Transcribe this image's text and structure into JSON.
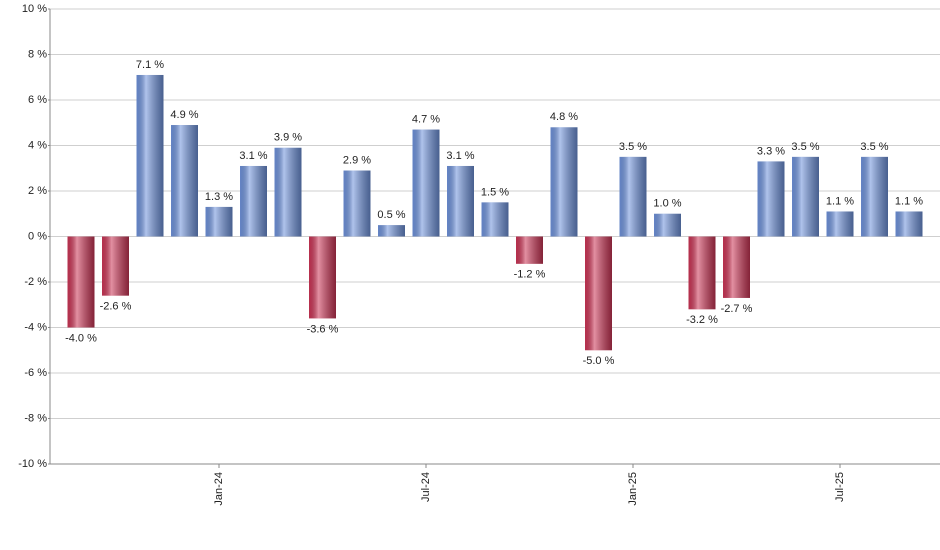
{
  "chart_data": {
    "type": "bar",
    "categories": [
      null,
      null,
      null,
      null,
      "Jan-24",
      null,
      null,
      null,
      null,
      null,
      "Jul-24",
      null,
      null,
      null,
      null,
      null,
      "Jan-25",
      null,
      null,
      null,
      null,
      null,
      "Jul-25",
      null,
      null
    ],
    "values": [
      -4.0,
      -2.6,
      7.1,
      4.9,
      1.3,
      3.1,
      3.9,
      -3.6,
      2.9,
      0.5,
      4.7,
      3.1,
      1.5,
      -1.2,
      4.8,
      -5.0,
      3.5,
      1.0,
      -3.2,
      -2.7,
      3.3,
      3.5,
      1.1,
      3.5,
      1.1
    ],
    "value_labels": [
      "-4.0 %",
      "-2.6 %",
      "7.1 %",
      "4.9 %",
      "1.3 %",
      "3.1 %",
      "3.9 %",
      "-3.6 %",
      "2.9 %",
      "0.5 %",
      "4.7 %",
      "3.1 %",
      "1.5 %",
      "-1.2 %",
      "4.8 %",
      "-5.0 %",
      "3.5 %",
      "1.0 %",
      "-3.2 %",
      "-2.7 %",
      "3.3 %",
      "3.5 %",
      "1.1 %",
      "3.5 %",
      "1.1 %"
    ],
    "positive_color": "#6f93dc",
    "negative_color": "#cc3556",
    "ylim": [
      -10,
      10
    ],
    "yticks": [
      {
        "value": -10,
        "label": "-10 %"
      },
      {
        "value": -8,
        "label": "-8 %"
      },
      {
        "value": -6,
        "label": "-6 %"
      },
      {
        "value": -4,
        "label": "-4 %"
      },
      {
        "value": -2,
        "label": "-2 %"
      },
      {
        "value": 0,
        "label": "0 %"
      },
      {
        "value": 2,
        "label": "2 %"
      },
      {
        "value": 4,
        "label": "4 %"
      },
      {
        "value": 6,
        "label": "6 %"
      },
      {
        "value": 8,
        "label": "8 %"
      },
      {
        "value": 10,
        "label": "10 %"
      }
    ],
    "grid": true
  }
}
